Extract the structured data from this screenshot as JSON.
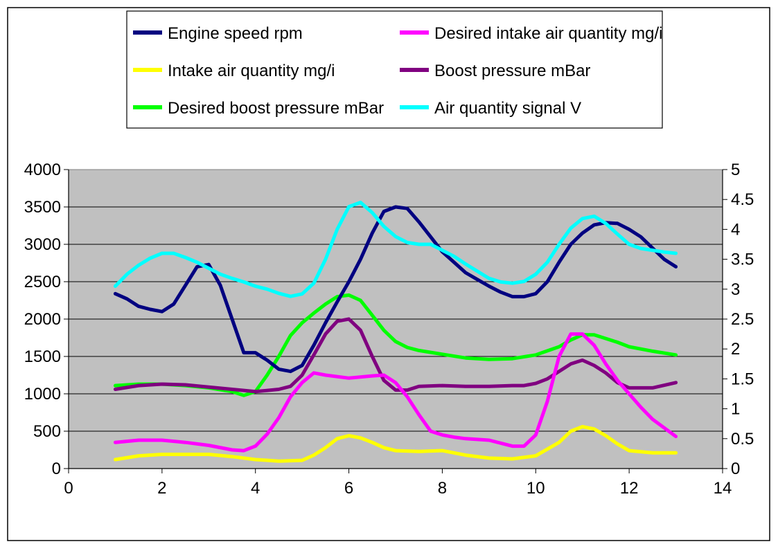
{
  "chart_data": {
    "type": "line",
    "title": "",
    "xlabel": "",
    "ylabel": "",
    "xlim": [
      0,
      14
    ],
    "xticks": [
      0,
      2,
      4,
      6,
      8,
      10,
      12,
      14
    ],
    "xtick_labels": [
      "0",
      "2",
      "4",
      "6",
      "8",
      "10",
      "12",
      "14"
    ],
    "ylim_left": [
      0,
      4000
    ],
    "yticks_left": [
      0,
      500,
      1000,
      1500,
      2000,
      2500,
      3000,
      3500,
      4000
    ],
    "ytick_labels_left": [
      "0",
      "500",
      "1000",
      "1500",
      "2000",
      "2500",
      "3000",
      "3500",
      "4000"
    ],
    "ylim_right": [
      0,
      5
    ],
    "yticks_right": [
      0,
      0.5,
      1,
      1.5,
      2,
      2.5,
      3,
      3.5,
      4,
      4.5,
      5
    ],
    "ytick_labels_right": [
      "0",
      "0.5",
      "1",
      "1.5",
      "2",
      "2.5",
      "3",
      "3.5",
      "4",
      "4.5",
      "5"
    ],
    "grid": "horizontal",
    "plot_background": "#c0c0c0",
    "legend_position": "top",
    "series": [
      {
        "name": "Engine speed rpm",
        "color": "#000080",
        "axis": "left",
        "x": [
          1,
          1.25,
          1.5,
          1.75,
          2,
          2.25,
          2.5,
          2.75,
          3,
          3.25,
          3.5,
          3.75,
          4,
          4.25,
          4.5,
          4.75,
          5,
          5.25,
          5.5,
          5.75,
          6,
          6.25,
          6.5,
          6.75,
          7,
          7.25,
          7.5,
          7.75,
          8,
          8.25,
          8.5,
          8.75,
          9,
          9.25,
          9.5,
          9.75,
          10,
          10.25,
          10.5,
          10.75,
          11,
          11.25,
          11.5,
          11.75,
          12,
          12.25,
          12.5,
          12.75,
          13
        ],
        "y": [
          2340,
          2270,
          2170,
          2130,
          2100,
          2200,
          2450,
          2700,
          2730,
          2450,
          2000,
          1550,
          1550,
          1450,
          1330,
          1300,
          1380,
          1650,
          1950,
          2230,
          2500,
          2800,
          3150,
          3440,
          3500,
          3480,
          3300,
          3100,
          2900,
          2760,
          2620,
          2530,
          2440,
          2360,
          2300,
          2300,
          2340,
          2500,
          2760,
          3000,
          3150,
          3260,
          3290,
          3280,
          3200,
          3100,
          2950,
          2800,
          2700
        ]
      },
      {
        "name": "Desired intake air quantity mg/i",
        "color": "#ff00ff",
        "axis": "left",
        "x": [
          1,
          1.5,
          2,
          2.5,
          3,
          3.5,
          3.75,
          4,
          4.25,
          4.5,
          4.75,
          5,
          5.25,
          5.5,
          6,
          6.5,
          6.75,
          7,
          7.25,
          7.5,
          7.75,
          8,
          8.25,
          8.5,
          9,
          9.5,
          9.75,
          10,
          10.25,
          10.5,
          10.75,
          11,
          11.25,
          11.5,
          11.75,
          12,
          12.25,
          12.5,
          13
        ],
        "y": [
          350,
          380,
          380,
          350,
          310,
          250,
          240,
          300,
          460,
          680,
          960,
          1150,
          1280,
          1250,
          1210,
          1240,
          1250,
          1150,
          960,
          720,
          500,
          450,
          420,
          400,
          380,
          300,
          300,
          450,
          900,
          1500,
          1800,
          1800,
          1650,
          1400,
          1180,
          1000,
          820,
          660,
          430
        ]
      },
      {
        "name": "Intake air quantity mg/i",
        "color": "#ffff00",
        "axis": "left",
        "x": [
          1,
          1.5,
          2,
          2.5,
          3,
          3.5,
          4,
          4.5,
          5,
          5.25,
          5.5,
          5.75,
          6,
          6.25,
          6.5,
          6.75,
          7,
          7.5,
          8,
          8.5,
          9,
          9.5,
          10,
          10.5,
          10.75,
          11,
          11.25,
          11.5,
          11.75,
          12,
          12.5,
          13
        ],
        "y": [
          120,
          170,
          190,
          190,
          190,
          160,
          120,
          100,
          110,
          180,
          280,
          400,
          440,
          410,
          350,
          280,
          240,
          230,
          240,
          180,
          140,
          130,
          170,
          350,
          500,
          560,
          530,
          440,
          330,
          240,
          210,
          210
        ]
      },
      {
        "name": "Boost pressure mBar",
        "color": "#800080",
        "axis": "left",
        "x": [
          1,
          1.5,
          2,
          2.5,
          3,
          3.5,
          4,
          4.5,
          4.75,
          5,
          5.25,
          5.5,
          5.75,
          6,
          6.25,
          6.5,
          6.75,
          7,
          7.25,
          7.5,
          8,
          8.5,
          9,
          9.5,
          9.75,
          10,
          10.25,
          10.5,
          10.75,
          11,
          11.25,
          11.5,
          11.75,
          12,
          12.5,
          13
        ],
        "y": [
          1060,
          1110,
          1130,
          1120,
          1090,
          1060,
          1030,
          1060,
          1100,
          1250,
          1520,
          1800,
          1970,
          2000,
          1850,
          1500,
          1180,
          1050,
          1050,
          1100,
          1110,
          1100,
          1100,
          1110,
          1110,
          1140,
          1200,
          1300,
          1400,
          1450,
          1380,
          1280,
          1150,
          1080,
          1080,
          1150
        ]
      },
      {
        "name": "Desired boost pressure mBar",
        "color": "#00ff00",
        "axis": "left",
        "x": [
          1,
          1.5,
          2,
          2.5,
          3,
          3.5,
          3.75,
          4,
          4.25,
          4.5,
          4.75,
          5,
          5.25,
          5.5,
          5.75,
          6,
          6.25,
          6.5,
          6.75,
          7,
          7.25,
          7.5,
          8,
          8.5,
          9,
          9.5,
          10,
          10.5,
          10.75,
          11,
          11.25,
          11.5,
          11.75,
          12,
          12.5,
          13
        ],
        "y": [
          1110,
          1130,
          1130,
          1110,
          1080,
          1030,
          980,
          1030,
          1250,
          1500,
          1780,
          1950,
          2080,
          2200,
          2300,
          2320,
          2250,
          2050,
          1850,
          1700,
          1620,
          1580,
          1530,
          1480,
          1460,
          1470,
          1520,
          1630,
          1720,
          1790,
          1790,
          1740,
          1690,
          1630,
          1570,
          1520
        ]
      },
      {
        "name": "Air quantity signal V",
        "color": "#00ffff",
        "axis": "right",
        "x": [
          1,
          1.25,
          1.5,
          1.75,
          2,
          2.25,
          2.5,
          2.75,
          3,
          3.25,
          3.5,
          3.75,
          4,
          4.25,
          4.5,
          4.75,
          5,
          5.25,
          5.5,
          5.75,
          6,
          6.25,
          6.5,
          6.75,
          7,
          7.25,
          7.5,
          7.75,
          8,
          8.25,
          8.5,
          8.75,
          9,
          9.25,
          9.5,
          9.75,
          10,
          10.25,
          10.5,
          10.75,
          11,
          11.25,
          11.5,
          11.75,
          12,
          12.25,
          12.5,
          12.75,
          13
        ],
        "y": [
          3.05,
          3.25,
          3.4,
          3.52,
          3.6,
          3.6,
          3.53,
          3.45,
          3.35,
          3.25,
          3.18,
          3.12,
          3.05,
          3.0,
          2.93,
          2.88,
          2.92,
          3.1,
          3.5,
          4.0,
          4.38,
          4.45,
          4.28,
          4.05,
          3.88,
          3.78,
          3.75,
          3.75,
          3.65,
          3.55,
          3.42,
          3.3,
          3.18,
          3.12,
          3.1,
          3.13,
          3.25,
          3.45,
          3.75,
          4.02,
          4.18,
          4.22,
          4.1,
          3.92,
          3.75,
          3.68,
          3.65,
          3.62,
          3.6
        ]
      }
    ]
  }
}
